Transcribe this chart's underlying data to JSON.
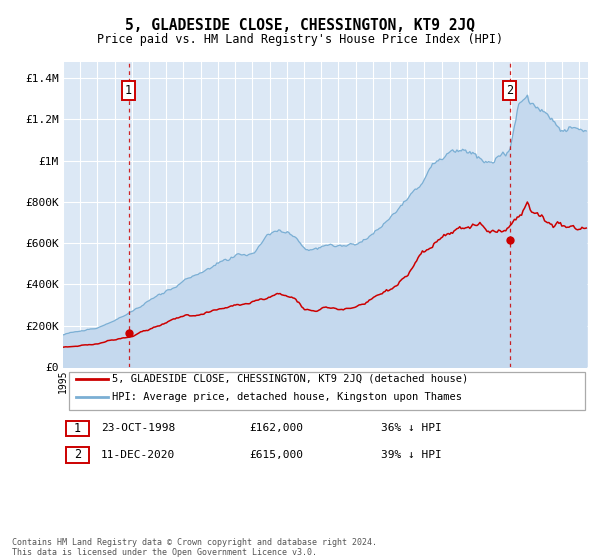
{
  "title": "5, GLADESIDE CLOSE, CHESSINGTON, KT9 2JQ",
  "subtitle": "Price paid vs. HM Land Registry's House Price Index (HPI)",
  "sale1_x": 1998.81,
  "sale1_price": 162000,
  "sale2_x": 2020.94,
  "sale2_price": 615000,
  "ylabel_ticks": [
    "£0",
    "£200K",
    "£400K",
    "£600K",
    "£800K",
    "£1M",
    "£1.2M",
    "£1.4M"
  ],
  "ylabel_vals": [
    0,
    200000,
    400000,
    600000,
    800000,
    1000000,
    1200000,
    1400000
  ],
  "ylim": [
    0,
    1480000
  ],
  "xlim_start": 1995.0,
  "xlim_end": 2025.5,
  "hpi_color": "#7bafd4",
  "hpi_fill_color": "#c5d9ee",
  "price_color": "#cc0000",
  "bg_color": "#dce8f5",
  "grid_color": "#ffffff",
  "ann_color": "#cc0000",
  "legend_label_price": "5, GLADESIDE CLOSE, CHESSINGTON, KT9 2JQ (detached house)",
  "legend_label_hpi": "HPI: Average price, detached house, Kingston upon Thames",
  "footer": "Contains HM Land Registry data © Crown copyright and database right 2024.\nThis data is licensed under the Open Government Licence v3.0."
}
